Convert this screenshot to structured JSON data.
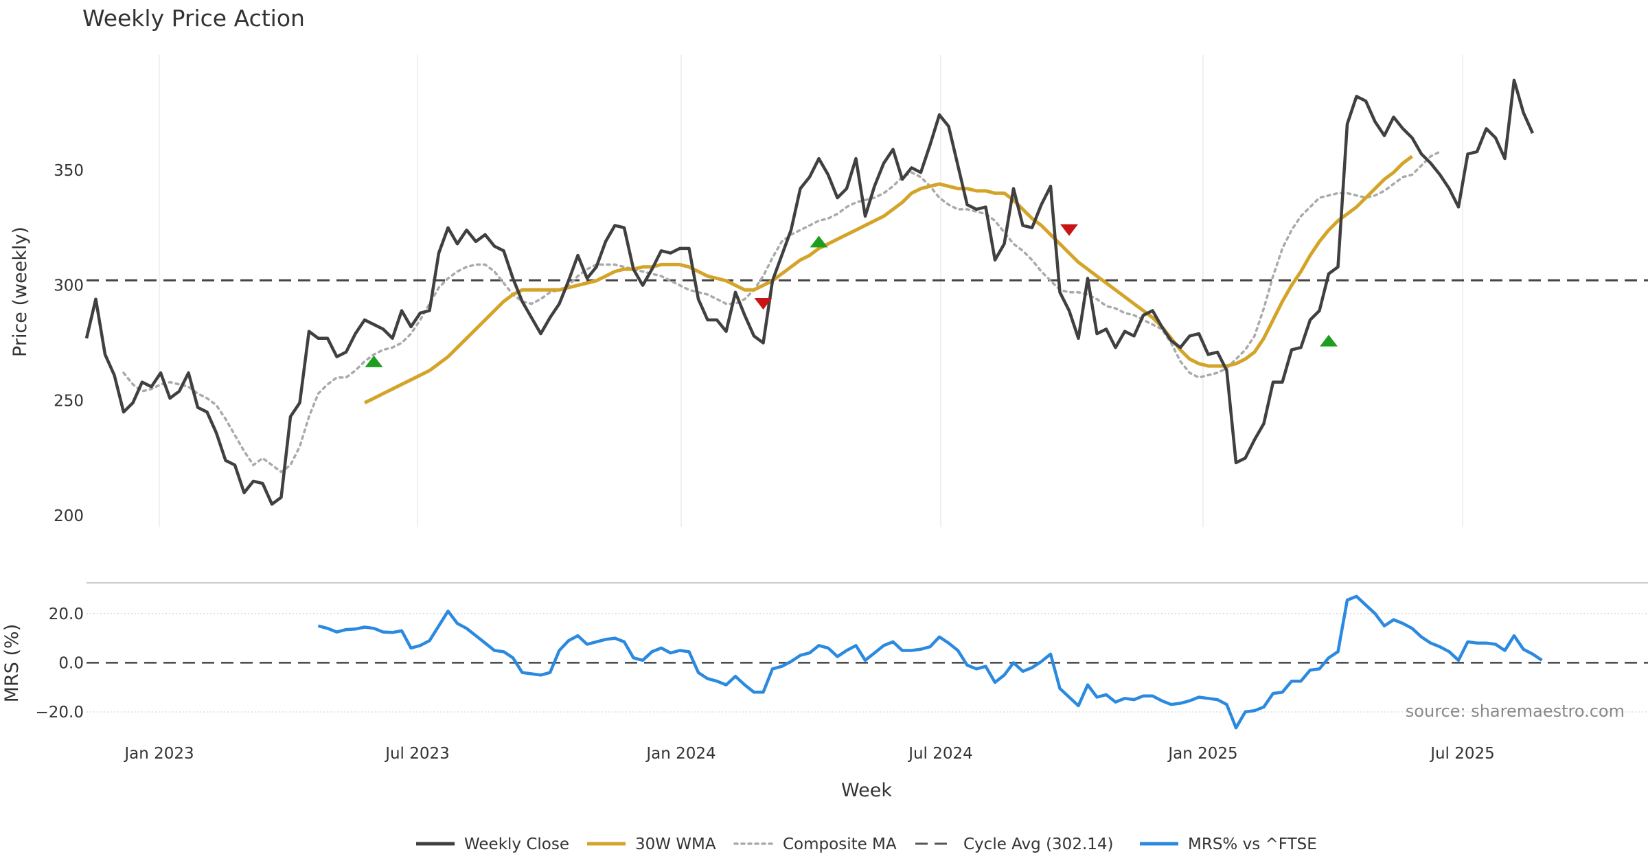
{
  "chart_data": {
    "type": "line",
    "title": "Weekly Price Action",
    "source_note": "source: sharemaestro.com",
    "xlabel": "Week",
    "x_ticks": [
      "Jan 2023",
      "Jul 2023",
      "Jan 2024",
      "Jul 2024",
      "Jan 2025",
      "Jul 2025"
    ],
    "price_panel": {
      "ylabel": "Price (weekly)",
      "ylim": [
        195,
        400
      ],
      "y_ticks": [
        "200",
        "250",
        "300",
        "350"
      ],
      "y_tick_values": [
        200,
        250,
        300,
        350
      ],
      "cycle_avg": 302.14,
      "series": {
        "weekly_close": {
          "name": "Weekly Close",
          "color": "#404040",
          "values": [
            277,
            294,
            270,
            261,
            245,
            249,
            258,
            256,
            262,
            251,
            254,
            262,
            247,
            245,
            236,
            224,
            222,
            210,
            215,
            214,
            205,
            208,
            243,
            249,
            280,
            277,
            277,
            269,
            271,
            279,
            285,
            283,
            281,
            277,
            289,
            282,
            288,
            289,
            314,
            325,
            318,
            324,
            319,
            322,
            317,
            315,
            303,
            293,
            286,
            279,
            286,
            292,
            302,
            313,
            303,
            308,
            319,
            326,
            325,
            307,
            300,
            307,
            315,
            314,
            316,
            316,
            294,
            285,
            285,
            280,
            297,
            287,
            278,
            275,
            302,
            313,
            324,
            342,
            347,
            355,
            348,
            338,
            342,
            355,
            330,
            343,
            353,
            359,
            346,
            351,
            349,
            361,
            374,
            369,
            352,
            335,
            333,
            334,
            311,
            318,
            342,
            326,
            325,
            335,
            343,
            297,
            289,
            277,
            303,
            279,
            281,
            273,
            280,
            278,
            287,
            289,
            282,
            276,
            273,
            278,
            279,
            270,
            271,
            263,
            223,
            225,
            233,
            240,
            258,
            258,
            272,
            273,
            285,
            289,
            305,
            308,
            370,
            382,
            380,
            371,
            365,
            373,
            368,
            364,
            357,
            353,
            348,
            342,
            334,
            357,
            358,
            368,
            364,
            355,
            389,
            375,
            366
          ],
          "avg_start_index": 0
        },
        "wma_30w": {
          "name": "30W WMA",
          "color": "#d4a428",
          "start_index": 30,
          "values": [
            249,
            251,
            253,
            255,
            257,
            259,
            261,
            263,
            266,
            269,
            273,
            277,
            281,
            285,
            289,
            293,
            296,
            298,
            298,
            298,
            298,
            298,
            299,
            300,
            301,
            302,
            304,
            306,
            307,
            307,
            308,
            308,
            309,
            309,
            309,
            308,
            306,
            304,
            303,
            302,
            300,
            298,
            298,
            300,
            302,
            305,
            308,
            311,
            313,
            316,
            318,
            320,
            322,
            324,
            326,
            328,
            330,
            333,
            336,
            340,
            342,
            343,
            344,
            343,
            342,
            342,
            341,
            341,
            340,
            340,
            337,
            333,
            329,
            326,
            322,
            318,
            314,
            310,
            307,
            304,
            301,
            298,
            295,
            292,
            289,
            286,
            282,
            277,
            272,
            268,
            266,
            265,
            265,
            265,
            266,
            268,
            271,
            277,
            285,
            293,
            300,
            306,
            313,
            319,
            324,
            328,
            331,
            334,
            338,
            342,
            346,
            349,
            353,
            356
          ],
          "start_date_note": "begins mid 2023"
        },
        "composite_ma": {
          "name": "Composite MA",
          "color": "#aaaaaa",
          "start_index": 4,
          "values": [
            262,
            257,
            254,
            255,
            257,
            258,
            257,
            256,
            253,
            251,
            248,
            242,
            235,
            228,
            222,
            225,
            222,
            219,
            222,
            230,
            243,
            253,
            257,
            260,
            260,
            263,
            267,
            270,
            272,
            273,
            275,
            279,
            285,
            292,
            299,
            303,
            306,
            308,
            309,
            309,
            306,
            301,
            296,
            293,
            292,
            294,
            297,
            298,
            300,
            304,
            307,
            309,
            309,
            309,
            308,
            307,
            306,
            305,
            304,
            302,
            300,
            298,
            297,
            296,
            294,
            292,
            292,
            294,
            298,
            304,
            312,
            319,
            322,
            324,
            326,
            328,
            329,
            331,
            334,
            336,
            337,
            338,
            340,
            343,
            347,
            349,
            347,
            343,
            338,
            335,
            333,
            333,
            332,
            331,
            328,
            323,
            318,
            315,
            311,
            306,
            302,
            298,
            297,
            297,
            296,
            294,
            291,
            290,
            288,
            287,
            285,
            283,
            281,
            275,
            267,
            262,
            260,
            261,
            262,
            264,
            268,
            272,
            278,
            290,
            304,
            316,
            324,
            330,
            334,
            338,
            339,
            340,
            340,
            339,
            338,
            339,
            341,
            344,
            347,
            348,
            352,
            356,
            358
          ],
          "start_note": "offset from first weekly close"
        }
      },
      "signals": [
        {
          "type": "buy",
          "index": 31,
          "value": 267,
          "color": "#1e9e1e"
        },
        {
          "type": "sell",
          "index": 73,
          "value": 292,
          "color": "#c81414"
        },
        {
          "type": "buy",
          "index": 79,
          "value": 319,
          "color": "#1e9e1e"
        },
        {
          "type": "sell",
          "index": 106,
          "value": 324,
          "color": "#c81414"
        },
        {
          "type": "buy",
          "index": 134,
          "value": 276,
          "color": "#1e9e1e"
        }
      ]
    },
    "mrs_panel": {
      "ylabel": "MRS (%)",
      "ylim": [
        -27,
        30
      ],
      "y_ticks": [
        "20.0",
        "0.0",
        "−20.0"
      ],
      "y_tick_values": [
        20,
        0,
        -20
      ],
      "series": {
        "name": "MRS% vs ^FTSE",
        "color": "#2b8ae0",
        "start_index": 25,
        "values": [
          15,
          14,
          12.5,
          13.5,
          13.7,
          14.5,
          14,
          12.5,
          12.3,
          13,
          6,
          7,
          9,
          15,
          21,
          16,
          14,
          11,
          8,
          5,
          4.5,
          2,
          -4,
          -4.5,
          -5,
          -4,
          5,
          9,
          11,
          7.5,
          8.5,
          9.5,
          10,
          8.5,
          2,
          1,
          4.5,
          6,
          4,
          5,
          4.5,
          -4,
          -6.5,
          -7.5,
          -9,
          -5.5,
          -9,
          -12,
          -12,
          -2.5,
          -1.5,
          0.5,
          3,
          4,
          7,
          6,
          2.5,
          5,
          7,
          1,
          4,
          7,
          8.5,
          5,
          5,
          5.5,
          6.5,
          10.5,
          8,
          5,
          -1,
          -2.5,
          -1.5,
          -8,
          -5,
          0,
          -3.5,
          -2,
          0.5,
          3.5,
          -10.5,
          -14,
          -17.5,
          -9,
          -14,
          -13,
          -16,
          -14.5,
          -15,
          -13.5,
          -13.5,
          -15.5,
          -17,
          -16.5,
          -15.5,
          -14,
          -14.5,
          -15,
          -17,
          -26.5,
          -20,
          -19.5,
          -18,
          -12.5,
          -12,
          -7.5,
          -7.5,
          -3,
          -2.5,
          2,
          4.5,
          25.5,
          27,
          23.5,
          20,
          15,
          17.5,
          16,
          14,
          10.5,
          8,
          6.5,
          4.5,
          1,
          8.5,
          8,
          8,
          7.5,
          5,
          11,
          5.5,
          3.5,
          1
        ]
      },
      "zero_line": true
    },
    "legend": [
      {
        "label": "Weekly Close",
        "style": "solid",
        "color": "#404040"
      },
      {
        "label": "30W WMA",
        "style": "solid",
        "color": "#d4a428"
      },
      {
        "label": "Composite MA",
        "style": "dotted",
        "color": "#aaaaaa"
      },
      {
        "label": "Cycle Avg (302.14)",
        "style": "dashed",
        "color": "#555555"
      },
      {
        "label": "MRS% vs ^FTSE",
        "style": "solid",
        "color": "#2b8ae0"
      }
    ],
    "legend_position": "bottom-center",
    "grid": "vertical"
  }
}
